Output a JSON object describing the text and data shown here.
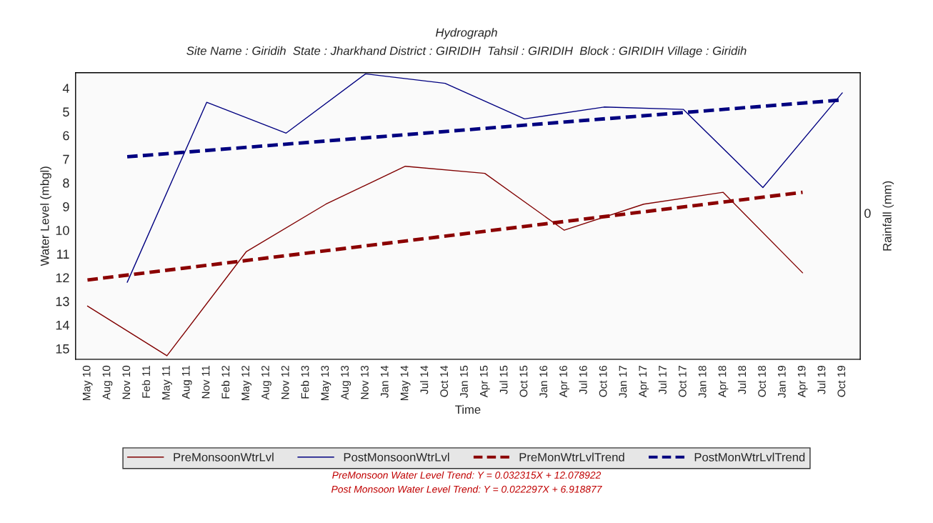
{
  "chart_data": {
    "type": "line",
    "title": "Hydrograph",
    "subtitle": "Site Name : Giridih  State : Jharkhand District : GIRIDIH  Tahsil : GIRIDIH  Block : GIRIDIH Village : Giridih",
    "xlabel": "Time",
    "ylabel": "Water Level (mbgl)",
    "y2label": "Rainfall (mm)",
    "categories": [
      "May 10",
      "Aug 10",
      "Nov 10",
      "Feb 11",
      "May 11",
      "Aug 11",
      "Nov 11",
      "Feb 12",
      "May 12",
      "Aug 12",
      "Nov 12",
      "Feb 13",
      "May 13",
      "Aug 13",
      "Nov 13",
      "Jan 14",
      "May 14",
      "Jul 14",
      "Oct 14",
      "Jan 15",
      "Apr 15",
      "Jul 15",
      "Oct 15",
      "Jan 16",
      "Apr 16",
      "Jul 16",
      "Oct 16",
      "Jan 17",
      "Apr 17",
      "Jul 17",
      "Oct 17",
      "Jan 18",
      "Apr 18",
      "Jul 18",
      "Oct 18",
      "Jan 19",
      "Apr 19",
      "Jul 19",
      "Oct 19"
    ],
    "series": [
      {
        "name": "PreMonsoonWtrLvl",
        "color": "#800000",
        "line_style": "solid",
        "values": [
          13.2,
          null,
          null,
          null,
          15.3,
          null,
          null,
          null,
          10.9,
          null,
          null,
          null,
          8.9,
          null,
          null,
          null,
          7.3,
          null,
          null,
          null,
          7.6,
          null,
          null,
          null,
          10.0,
          null,
          null,
          null,
          8.9,
          null,
          null,
          null,
          8.4,
          null,
          null,
          null,
          11.8,
          null,
          null
        ]
      },
      {
        "name": "PostMonsoonWtrLvl",
        "color": "#000080",
        "line_style": "solid",
        "values": [
          null,
          null,
          12.2,
          null,
          null,
          null,
          4.6,
          null,
          null,
          null,
          5.9,
          null,
          null,
          null,
          3.4,
          null,
          null,
          null,
          3.8,
          null,
          null,
          null,
          5.3,
          null,
          null,
          null,
          4.8,
          null,
          null,
          null,
          4.9,
          null,
          null,
          null,
          8.2,
          null,
          null,
          null,
          4.2
        ]
      },
      {
        "name": "PreMonWtrLvlTrend",
        "color": "#8b0000",
        "line_style": "dashed",
        "values": [
          12.1,
          null,
          null,
          null,
          null,
          null,
          null,
          null,
          null,
          null,
          null,
          null,
          null,
          null,
          null,
          null,
          null,
          null,
          null,
          null,
          null,
          null,
          null,
          null,
          null,
          null,
          null,
          null,
          null,
          null,
          null,
          null,
          null,
          null,
          null,
          null,
          8.4,
          null,
          null
        ]
      },
      {
        "name": "PostMonWtrLvlTrend",
        "color": "#000080",
        "line_style": "dashed",
        "values": [
          null,
          null,
          6.9,
          null,
          null,
          null,
          null,
          null,
          null,
          null,
          null,
          null,
          null,
          null,
          null,
          null,
          null,
          null,
          null,
          null,
          null,
          null,
          null,
          null,
          null,
          null,
          null,
          null,
          null,
          null,
          null,
          null,
          null,
          null,
          null,
          null,
          null,
          null,
          4.5
        ]
      }
    ],
    "ylim": [
      15.45,
      3.35
    ],
    "yticks": [
      4,
      5,
      6,
      7,
      8,
      9,
      10,
      11,
      12,
      13,
      14,
      15
    ],
    "grid": false,
    "legend": "bottom",
    "marker": "none",
    "annotations": [
      "0",
      "PreMonsoon Water Level Trend: Y = 0.032315X + 12.078922",
      "Post Monsoon Water Level Trend: Y = 0.022297X + 6.918877"
    ]
  }
}
